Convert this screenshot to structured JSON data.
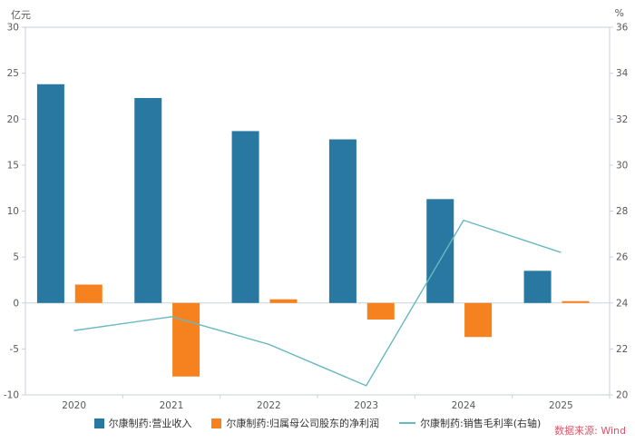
{
  "source": "数据来源: Wind",
  "chart_data": {
    "type": "bar+line",
    "title": "",
    "categories": [
      "2020",
      "2021",
      "2022",
      "2023",
      "2024",
      "2025"
    ],
    "series": [
      {
        "name": "尔康制药:营业收入",
        "type": "bar",
        "axis": "left",
        "color": "#2878A2",
        "values": [
          23.8,
          22.3,
          18.7,
          17.8,
          11.3,
          3.5
        ]
      },
      {
        "name": "尔康制药:归属母公司股东的净利润",
        "type": "bar",
        "axis": "left",
        "color": "#F6821F",
        "values": [
          2.0,
          -8.0,
          0.4,
          -1.8,
          -3.7,
          0.2
        ]
      },
      {
        "name": "尔康制药:销售毛利率(右轴)",
        "type": "line",
        "axis": "right",
        "color": "#66B9BF",
        "values": [
          22.8,
          23.4,
          22.2,
          20.4,
          27.6,
          26.2
        ]
      }
    ],
    "left_axis": {
      "min": -10,
      "max": 30,
      "step": 5,
      "unit": "亿元"
    },
    "right_axis": {
      "min": 20,
      "max": 36,
      "step": 2,
      "unit": "%"
    },
    "legend_position": "bottom",
    "grid": false,
    "axis_line_color": "#C9D2D8",
    "tick_label_color": "#595959"
  }
}
